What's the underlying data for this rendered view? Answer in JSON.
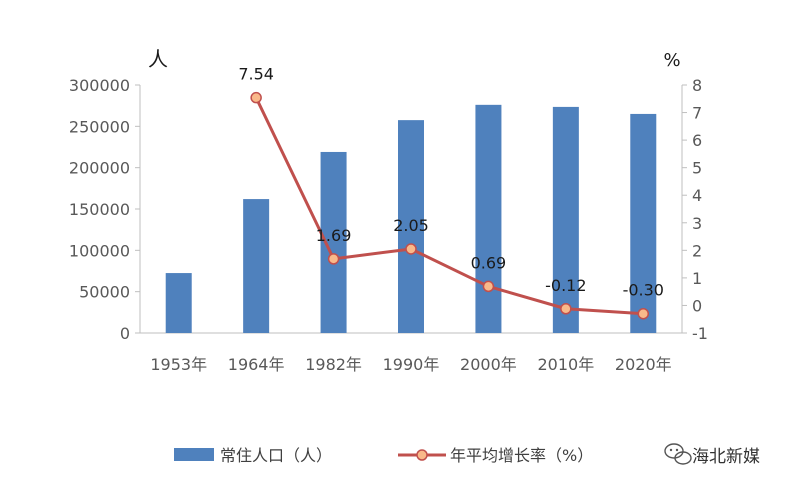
{
  "chart_data": {
    "type": "bar",
    "categories": [
      "1953年",
      "1964年",
      "1982年",
      "1990年",
      "2000年",
      "2010年",
      "2020年"
    ],
    "series": [
      {
        "name": "常住人口（人）",
        "type": "bar",
        "axis": "left",
        "values": [
          72500,
          162000,
          219000,
          257500,
          276000,
          273500,
          265000
        ],
        "color": "#4f81bd"
      },
      {
        "name": "年平均增长率（%）",
        "type": "line",
        "axis": "right",
        "values": [
          null,
          7.54,
          1.69,
          2.05,
          0.69,
          -0.12,
          -0.3
        ],
        "labels": [
          "",
          "7.54",
          "1.69",
          "2.05",
          "0.69",
          "-0.12",
          "-0.30"
        ],
        "color": "#c0504d",
        "marker_fill": "#f9b98a"
      }
    ],
    "left_axis": {
      "unit": "人",
      "ylim": [
        0,
        300000
      ],
      "ticks": [
        "0",
        "50000",
        "100000",
        "150000",
        "200000",
        "250000",
        "300000"
      ]
    },
    "right_axis": {
      "unit": "%",
      "ylim": [
        -1,
        8
      ],
      "ticks": [
        "-1",
        "0",
        "1",
        "2",
        "3",
        "4",
        "5",
        "6",
        "7",
        "8"
      ]
    },
    "grid": false,
    "legend_position": "bottom"
  },
  "watermark": {
    "icon": "wechat-icon",
    "text": "海北新媒"
  }
}
